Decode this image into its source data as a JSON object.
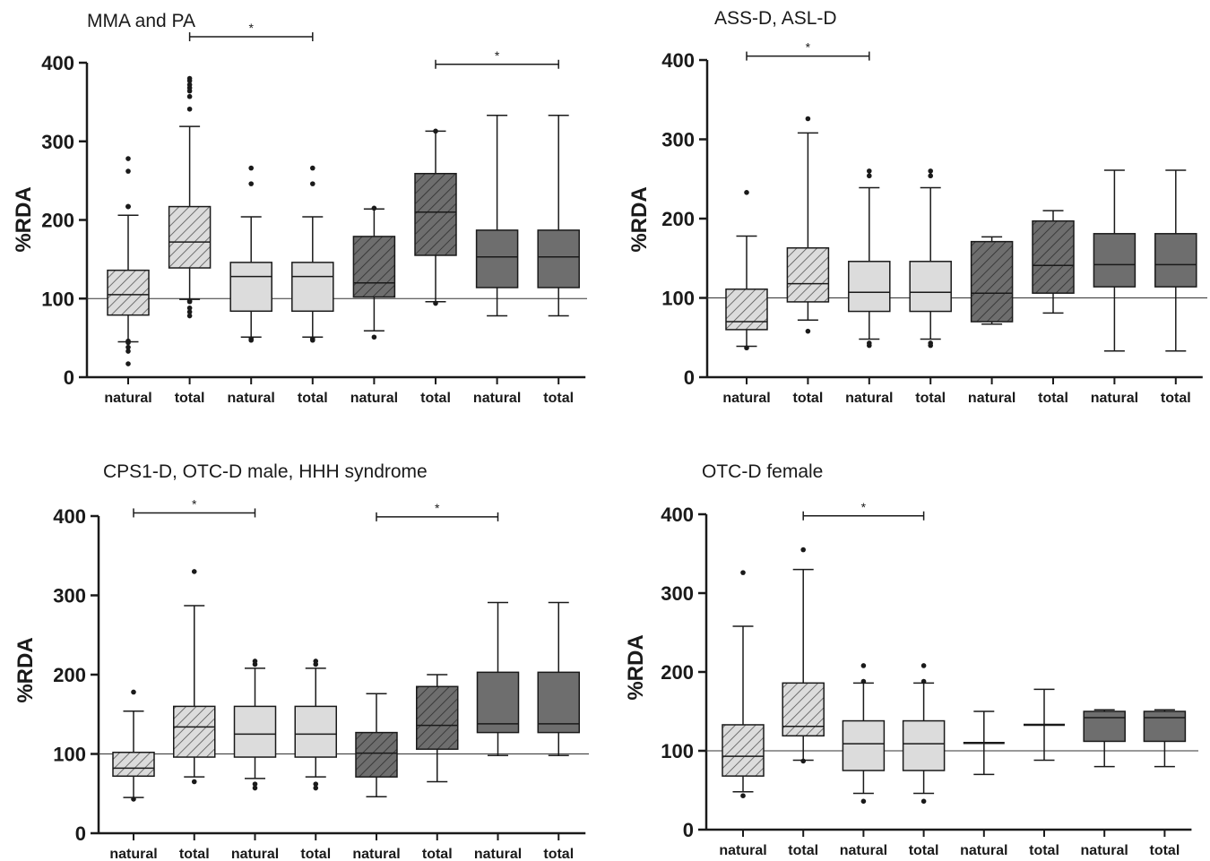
{
  "chart_data": [
    {
      "type": "box",
      "title": "MMA and PA",
      "ylabel": "%RDA",
      "ylim": [
        0,
        400
      ],
      "yticks": [
        0,
        100,
        200,
        300,
        400
      ],
      "reference_line": 100,
      "categories": [
        "natural",
        "total",
        "natural",
        "total",
        "natural",
        "total",
        "natural",
        "total"
      ],
      "boxes": [
        {
          "label": "natural",
          "style": "light-hatched",
          "min": 45,
          "q1": 79,
          "median": 105,
          "q3": 136,
          "max": 206,
          "outliers": [
            17,
            33,
            38,
            44,
            46,
            217,
            217,
            217,
            217,
            262,
            278
          ]
        },
        {
          "label": "total",
          "style": "light-hatched",
          "min": 99,
          "q1": 139,
          "median": 172,
          "q3": 217,
          "max": 319,
          "outliers": [
            78,
            83,
            88,
            96,
            97,
            341,
            357,
            364,
            368,
            372,
            377,
            380
          ]
        },
        {
          "label": "natural",
          "style": "light",
          "min": 51,
          "q1": 84,
          "median": 128,
          "q3": 146,
          "max": 204,
          "outliers": [
            47,
            49,
            246,
            266
          ]
        },
        {
          "label": "total",
          "style": "light",
          "min": 51,
          "q1": 84,
          "median": 128,
          "q3": 146,
          "max": 204,
          "outliers": [
            47,
            49,
            246,
            266
          ]
        },
        {
          "label": "natural",
          "style": "dark-hatched",
          "min": 59,
          "q1": 102,
          "median": 120,
          "q3": 179,
          "max": 214,
          "outliers": [
            51,
            215
          ]
        },
        {
          "label": "total",
          "style": "dark-hatched",
          "min": 96,
          "q1": 155,
          "median": 210,
          "q3": 259,
          "max": 313,
          "outliers": [
            94,
            313
          ]
        },
        {
          "label": "natural",
          "style": "dark",
          "min": 78,
          "q1": 114,
          "median": 153,
          "q3": 187,
          "max": 333,
          "outliers": []
        },
        {
          "label": "total",
          "style": "dark",
          "min": 78,
          "q1": 114,
          "median": 153,
          "q3": 187,
          "max": 333,
          "outliers": []
        }
      ],
      "significance": [
        {
          "from": 1,
          "to": 3,
          "label": "*",
          "y": 433
        },
        {
          "from": 5,
          "to": 7,
          "label": "*",
          "y": 398
        }
      ]
    },
    {
      "type": "box",
      "title": "ASS-D, ASL-D",
      "ylabel": "%RDA",
      "ylim": [
        0,
        400
      ],
      "yticks": [
        0,
        100,
        200,
        300,
        400
      ],
      "reference_line": 100,
      "categories": [
        "natural",
        "total",
        "natural",
        "total",
        "natural",
        "total",
        "natural",
        "total"
      ],
      "boxes": [
        {
          "label": "natural",
          "style": "light-hatched",
          "min": 39,
          "q1": 60,
          "median": 70,
          "q3": 111,
          "max": 178,
          "outliers": [
            37,
            233
          ]
        },
        {
          "label": "total",
          "style": "light-hatched",
          "min": 72,
          "q1": 95,
          "median": 118,
          "q3": 163,
          "max": 308,
          "outliers": [
            58,
            326
          ]
        },
        {
          "label": "natural",
          "style": "light",
          "min": 48,
          "q1": 83,
          "median": 107,
          "q3": 146,
          "max": 239,
          "outliers": [
            40,
            43,
            254,
            260
          ]
        },
        {
          "label": "total",
          "style": "light",
          "min": 48,
          "q1": 83,
          "median": 107,
          "q3": 146,
          "max": 239,
          "outliers": [
            40,
            43,
            254,
            260
          ]
        },
        {
          "label": "natural",
          "style": "dark-hatched",
          "min": 67,
          "q1": 70,
          "median": 106,
          "q3": 171,
          "max": 177,
          "outliers": []
        },
        {
          "label": "total",
          "style": "dark-hatched",
          "min": 81,
          "q1": 106,
          "median": 141,
          "q3": 197,
          "max": 210,
          "outliers": []
        },
        {
          "label": "natural",
          "style": "dark",
          "min": 33,
          "q1": 114,
          "median": 142,
          "q3": 181,
          "max": 261,
          "outliers": []
        },
        {
          "label": "total",
          "style": "dark",
          "min": 33,
          "q1": 114,
          "median": 142,
          "q3": 181,
          "max": 261,
          "outliers": []
        }
      ],
      "significance": [
        {
          "from": 0,
          "to": 2,
          "label": "*",
          "y": 405
        }
      ]
    },
    {
      "type": "box",
      "title": "CPS1-D, OTC-D male, HHH syndrome",
      "ylabel": "%RDA",
      "ylim": [
        0,
        400
      ],
      "yticks": [
        0,
        100,
        200,
        300,
        400
      ],
      "reference_line": 100,
      "categories": [
        "natural",
        "total",
        "natural",
        "total",
        "natural",
        "total",
        "natural",
        "total"
      ],
      "boxes": [
        {
          "label": "natural",
          "style": "light-hatched",
          "min": 45,
          "q1": 72,
          "median": 82,
          "q3": 102,
          "max": 154,
          "outliers": [
            43,
            178
          ]
        },
        {
          "label": "total",
          "style": "light-hatched",
          "min": 71,
          "q1": 96,
          "median": 134,
          "q3": 160,
          "max": 287,
          "outliers": [
            65,
            330
          ]
        },
        {
          "label": "natural",
          "style": "light",
          "min": 69,
          "q1": 96,
          "median": 125,
          "q3": 160,
          "max": 208,
          "outliers": [
            57,
            62,
            213,
            217
          ]
        },
        {
          "label": "total",
          "style": "light",
          "min": 71,
          "q1": 96,
          "median": 125,
          "q3": 160,
          "max": 208,
          "outliers": [
            57,
            62,
            213,
            217
          ]
        },
        {
          "label": "natural",
          "style": "dark-hatched",
          "min": 46,
          "q1": 71,
          "median": 101,
          "q3": 127,
          "max": 176,
          "outliers": []
        },
        {
          "label": "total",
          "style": "dark-hatched",
          "min": 65,
          "q1": 106,
          "median": 136,
          "q3": 185,
          "max": 200,
          "outliers": []
        },
        {
          "label": "natural",
          "style": "dark",
          "min": 98,
          "q1": 127,
          "median": 138,
          "q3": 203,
          "max": 291,
          "outliers": []
        },
        {
          "label": "total",
          "style": "dark",
          "min": 98,
          "q1": 127,
          "median": 138,
          "q3": 203,
          "max": 291,
          "outliers": []
        }
      ],
      "significance": [
        {
          "from": 0,
          "to": 2,
          "label": "*",
          "y": 404
        },
        {
          "from": 4,
          "to": 6,
          "label": "*",
          "y": 399
        }
      ]
    },
    {
      "type": "box",
      "title": "OTC-D female",
      "ylabel": "%RDA",
      "ylim": [
        0,
        400
      ],
      "yticks": [
        0,
        100,
        200,
        300,
        400
      ],
      "reference_line": 100,
      "categories": [
        "natural",
        "total",
        "natural",
        "total",
        "natural",
        "total",
        "natural",
        "total"
      ],
      "boxes": [
        {
          "label": "natural",
          "style": "light-hatched",
          "min": 48,
          "q1": 68,
          "median": 93,
          "q3": 133,
          "max": 258,
          "outliers": [
            43,
            326
          ]
        },
        {
          "label": "total",
          "style": "light-hatched",
          "min": 88,
          "q1": 119,
          "median": 131,
          "q3": 186,
          "max": 330,
          "outliers": [
            87,
            355
          ]
        },
        {
          "label": "natural",
          "style": "light",
          "min": 46,
          "q1": 75,
          "median": 109,
          "q3": 138,
          "max": 186,
          "outliers": [
            36,
            188,
            208
          ]
        },
        {
          "label": "total",
          "style": "light",
          "min": 46,
          "q1": 75,
          "median": 109,
          "q3": 138,
          "max": 186,
          "outliers": [
            36,
            188,
            208
          ]
        },
        {
          "label": "natural",
          "style": "line",
          "min": 70,
          "median": 110,
          "max": 150,
          "outliers": []
        },
        {
          "label": "total",
          "style": "line",
          "min": 88,
          "median": 133,
          "max": 178,
          "outliers": []
        },
        {
          "label": "natural",
          "style": "dark",
          "min": 80,
          "q1": 112,
          "median": 142,
          "q3": 150,
          "max": 152,
          "outliers": []
        },
        {
          "label": "total",
          "style": "dark",
          "min": 80,
          "q1": 112,
          "median": 142,
          "q3": 150,
          "max": 152,
          "outliers": []
        }
      ],
      "significance": [
        {
          "from": 1,
          "to": 3,
          "label": "*",
          "y": 398
        }
      ]
    }
  ],
  "colors": {
    "light": "#dcdcdc",
    "dark": "#6e6e6e",
    "ink": "#1a1a1a",
    "hatch_on_light": "#555555",
    "hatch_on_dark": "#2e2e2e"
  }
}
